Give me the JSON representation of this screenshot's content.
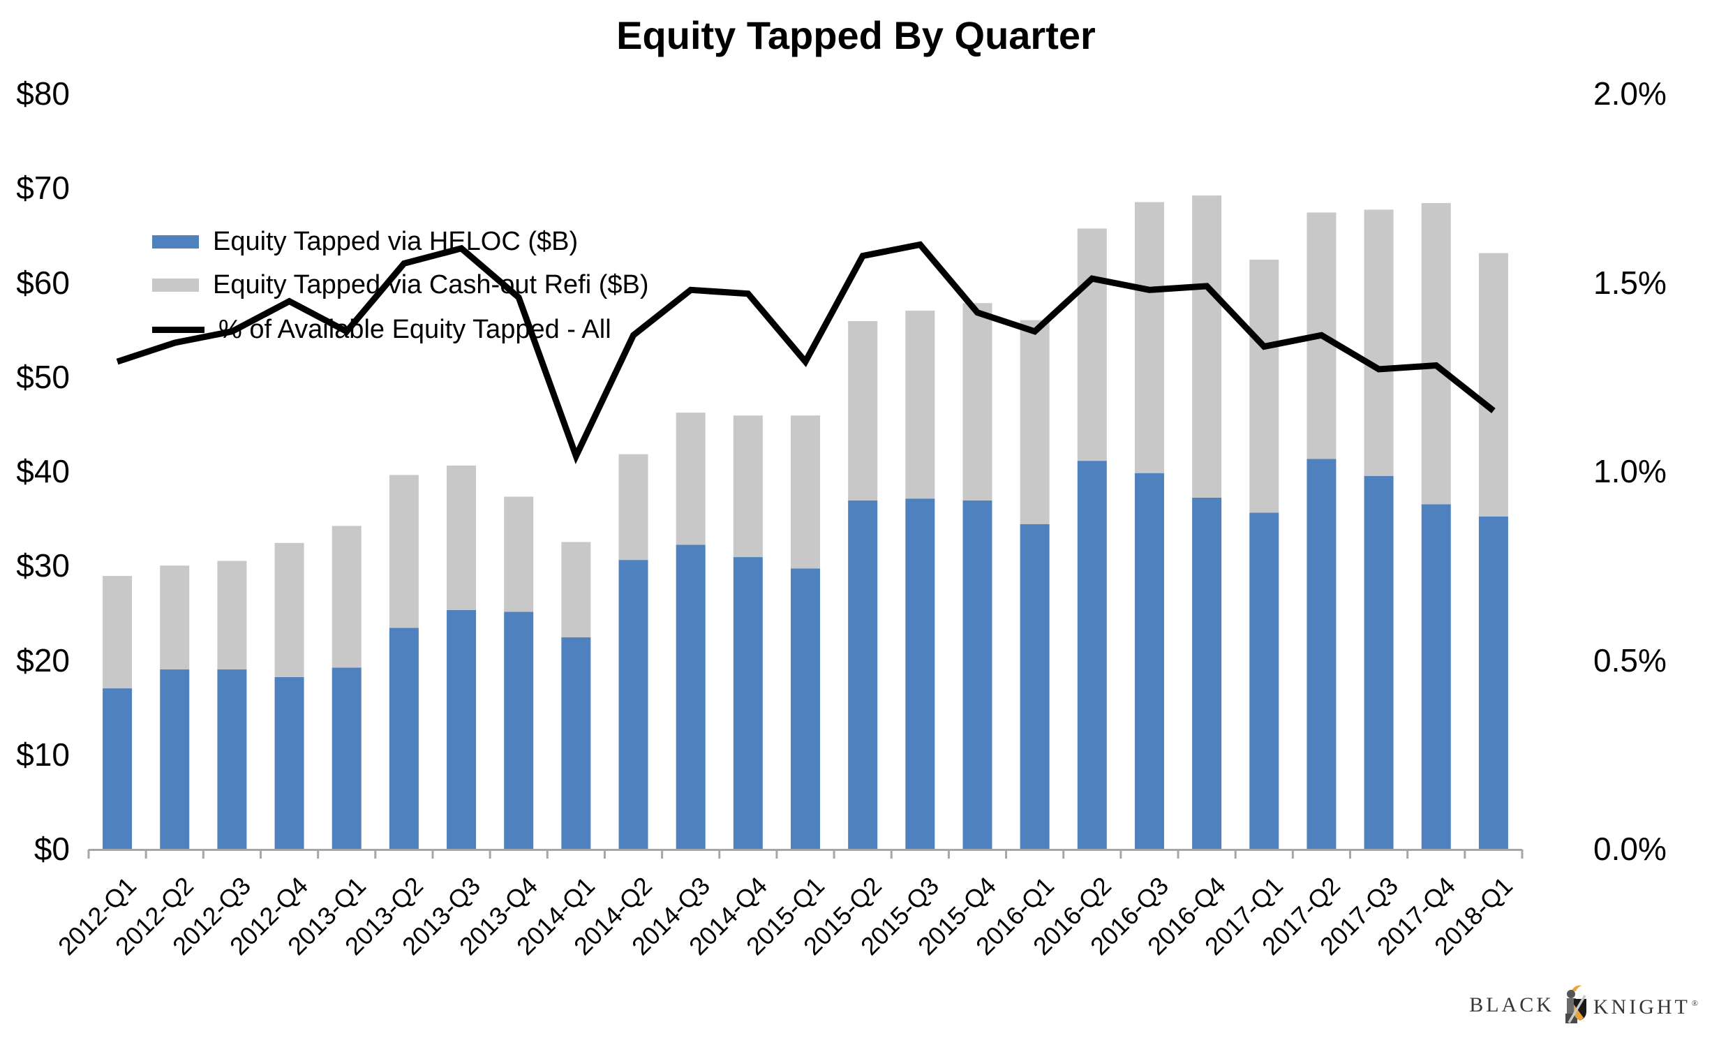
{
  "title": "Equity Tapped By Quarter",
  "legend": [
    {
      "label": "Equity Tapped via HELOC ($B)",
      "swatch": "blue-rect"
    },
    {
      "label": "Equity Tapped via Cash-out Refi ($B)",
      "swatch": "gray-rect"
    },
    {
      "label": "% of Available Equity Tapped - All",
      "swatch": "black-line"
    }
  ],
  "colors": {
    "heloc_blue": "#4E81BD",
    "refi_gray": "#C8C8C8",
    "pct_line": "#000000",
    "axis_gray": "#A6A6A6",
    "text_black": "#000000",
    "logo_text": "#3B3633",
    "logo_gold": "#E8A33B"
  },
  "y_axis_left": {
    "tick_labels": [
      "$0",
      "$10",
      "$20",
      "$30",
      "$40",
      "$50",
      "$60",
      "$70",
      "$80"
    ],
    "min": 0,
    "max": 80
  },
  "y_axis_right": {
    "tick_labels": [
      "0.0%",
      "0.5%",
      "1.0%",
      "1.5%",
      "2.0%"
    ],
    "min": 0,
    "max": 2.0
  },
  "chart_data": {
    "type": "bar",
    "subtype": "stacked-bar-with-line",
    "title": "Equity Tapped By Quarter",
    "xlabel": "",
    "ylabel": "",
    "ylim": [
      0,
      80
    ],
    "y2lim": [
      0,
      2.0
    ],
    "grid": false,
    "legend_position": "top-left",
    "categories": [
      "2012-Q1",
      "2012-Q2",
      "2012-Q3",
      "2012-Q4",
      "2013-Q1",
      "2013-Q2",
      "2013-Q3",
      "2013-Q4",
      "2014-Q1",
      "2014-Q2",
      "2014-Q3",
      "2014-Q4",
      "2015-Q1",
      "2015-Q2",
      "2015-Q3",
      "2015-Q4",
      "2016-Q1",
      "2016-Q2",
      "2016-Q3",
      "2016-Q4",
      "2017-Q1",
      "2017-Q2",
      "2017-Q3",
      "2017-Q4",
      "2018-Q1"
    ],
    "series": [
      {
        "name": "Equity Tapped via HELOC ($B)",
        "type": "bar",
        "stack": "equity",
        "axis": "left",
        "values": [
          17.0,
          19.0,
          19.0,
          18.2,
          19.2,
          23.4,
          25.3,
          25.1,
          22.4,
          30.6,
          32.2,
          30.9,
          29.7,
          36.9,
          37.1,
          36.9,
          34.4,
          41.1,
          39.8,
          37.2,
          35.6,
          41.3,
          39.5,
          36.5,
          35.2
        ]
      },
      {
        "name": "Equity Tapped via Cash-out Refi ($B)",
        "type": "bar",
        "stack": "equity",
        "axis": "left",
        "values": [
          11.9,
          11.0,
          11.5,
          14.2,
          15.0,
          16.2,
          15.3,
          12.2,
          10.1,
          11.2,
          14.0,
          15.0,
          16.2,
          19.0,
          19.9,
          20.9,
          21.6,
          24.6,
          28.7,
          32.0,
          26.8,
          26.1,
          28.2,
          31.9,
          27.9
        ]
      },
      {
        "name": "% of Available Equity Tapped - All",
        "type": "line",
        "axis": "right",
        "values": [
          1.29,
          1.34,
          1.37,
          1.45,
          1.37,
          1.55,
          1.59,
          1.46,
          1.04,
          1.36,
          1.48,
          1.47,
          1.29,
          1.57,
          1.6,
          1.42,
          1.37,
          1.51,
          1.48,
          1.49,
          1.33,
          1.36,
          1.27,
          1.28,
          1.16
        ]
      }
    ]
  },
  "logo": {
    "text_left": "BLACK",
    "text_right": "KNIGHT",
    "registered": "®"
  }
}
